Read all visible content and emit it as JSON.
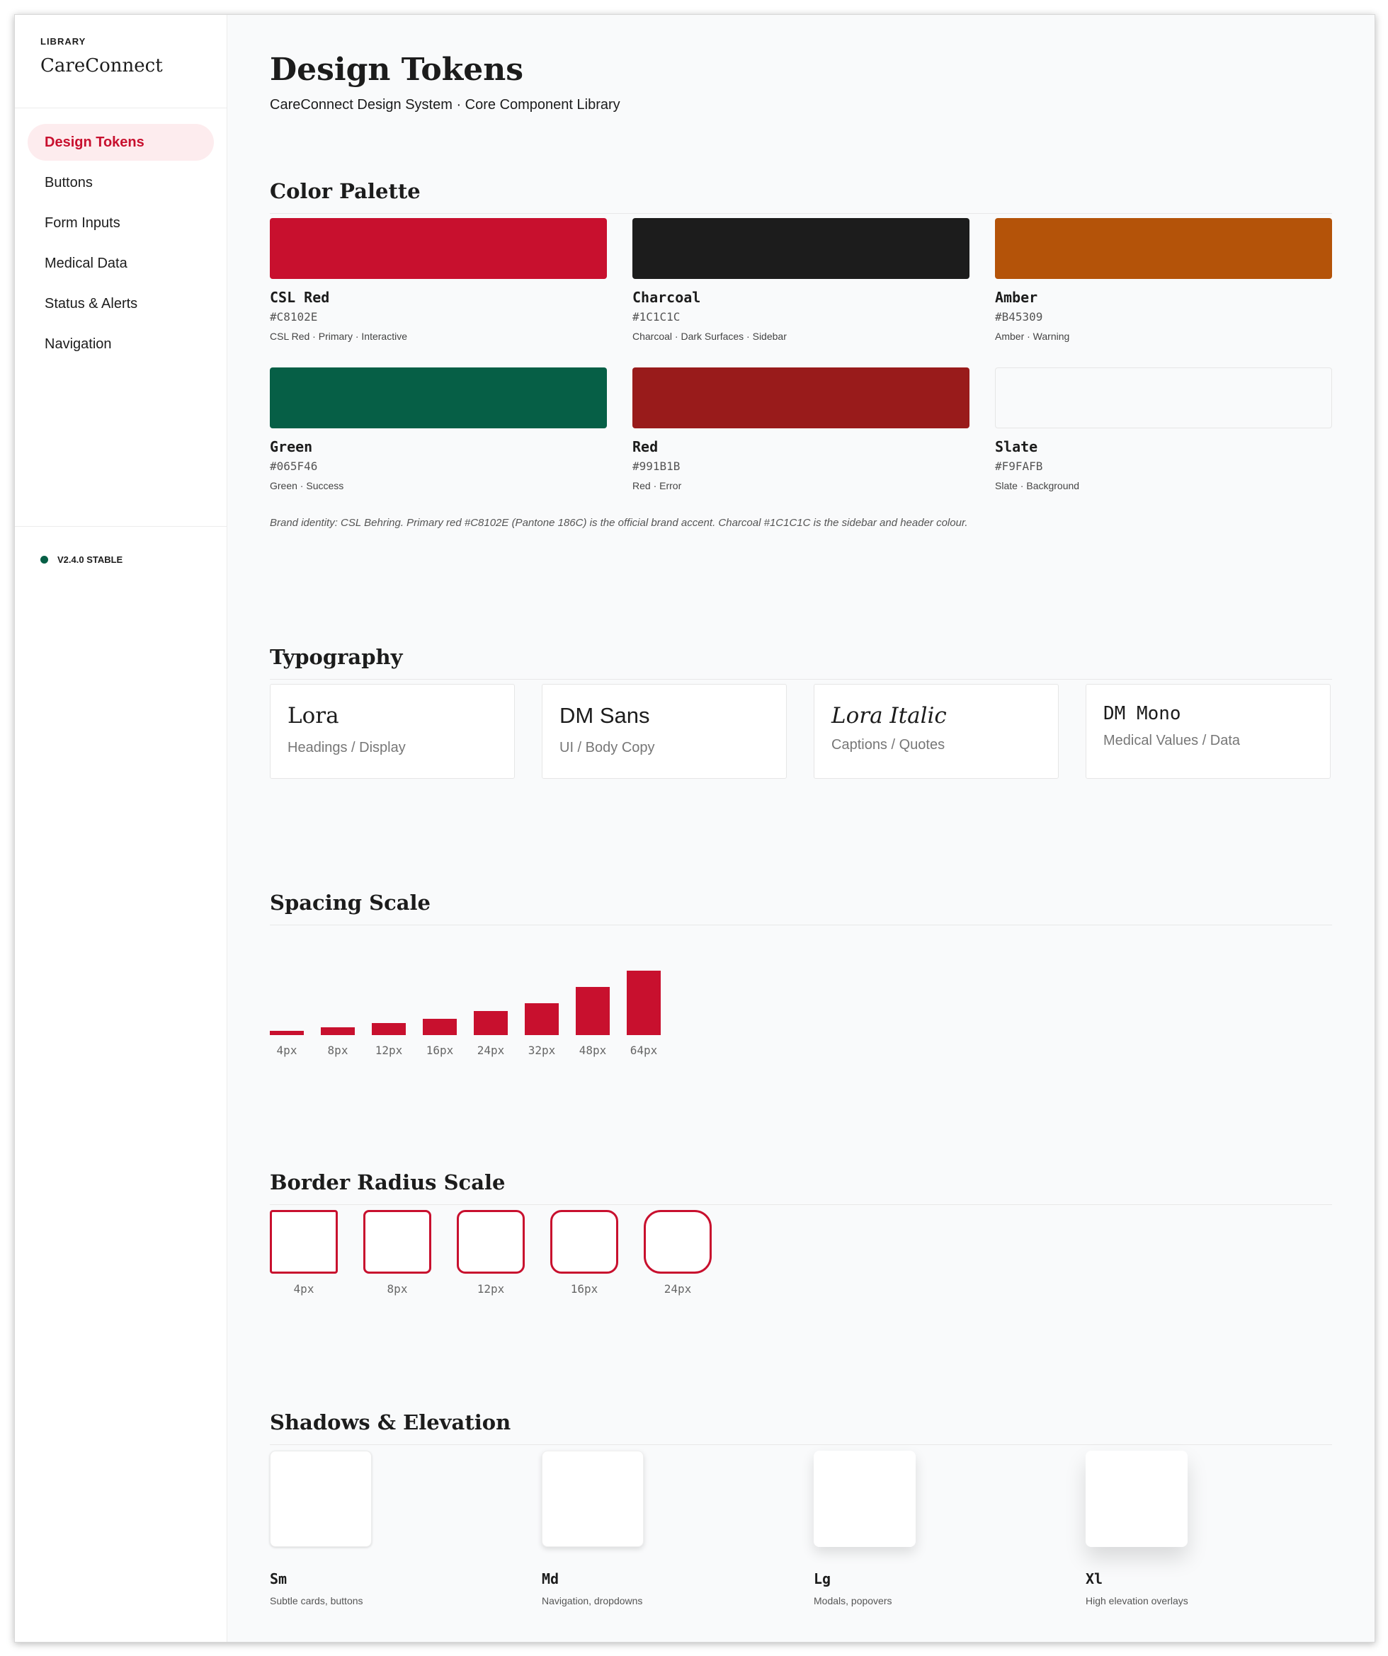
{
  "sidebar": {
    "kicker": "LIBRARY",
    "title": "CareConnect",
    "items": [
      {
        "label": "Design Tokens",
        "active": true
      },
      {
        "label": "Buttons",
        "active": false
      },
      {
        "label": "Form Inputs",
        "active": false
      },
      {
        "label": "Medical Data",
        "active": false
      },
      {
        "label": "Status & Alerts",
        "active": false
      },
      {
        "label": "Navigation",
        "active": false
      }
    ],
    "version": "V2.4.0 STABLE",
    "version_color": "#065F46"
  },
  "header": {
    "title": "Design Tokens",
    "subtitle": "CareConnect Design System · Core Component Library"
  },
  "sections": {
    "colors": "Color Palette",
    "typography": "Typography",
    "spacing": "Spacing Scale",
    "radius": "Border Radius Scale",
    "shadows": "Shadows & Elevation"
  },
  "colors": [
    {
      "name": "CSL Red",
      "hex": "#C8102E",
      "note": "CSL Red · Primary · Interactive"
    },
    {
      "name": "Charcoal",
      "hex": "#1C1C1C",
      "note": "Charcoal · Dark Surfaces · Sidebar"
    },
    {
      "name": "Amber",
      "hex": "#B45309",
      "note": "Amber · Warning"
    },
    {
      "name": "Green",
      "hex": "#065F46",
      "note": "Green · Success"
    },
    {
      "name": "Red",
      "hex": "#991B1B",
      "note": "Red · Error"
    },
    {
      "name": "Slate",
      "hex": "#F9FAFB",
      "note": "Slate · Background"
    }
  ],
  "brand_note": "Brand identity: CSL Behring. Primary red #C8102E (Pantone 186C) is the official brand accent. Charcoal #1C1C1C is the sidebar and header colour.",
  "typography": [
    {
      "name": "Lora",
      "use": "Headings / Display"
    },
    {
      "name": "DM Sans",
      "use": "UI / Body Copy"
    },
    {
      "name": "Lora Italic",
      "use": "Captions / Quotes"
    },
    {
      "name": "DM Mono",
      "use": "Medical Values / Data"
    }
  ],
  "spacing": [
    "4px",
    "8px",
    "12px",
    "16px",
    "24px",
    "32px",
    "48px",
    "64px"
  ],
  "spacing_values": [
    4,
    8,
    12,
    16,
    24,
    32,
    48,
    64
  ],
  "radius": [
    "4px",
    "8px",
    "12px",
    "16px",
    "24px"
  ],
  "shadows": [
    {
      "name": "Sm",
      "desc": "Subtle cards, buttons"
    },
    {
      "name": "Md",
      "desc": "Navigation, dropdowns"
    },
    {
      "name": "Lg",
      "desc": "Modals, popovers"
    },
    {
      "name": "Xl",
      "desc": "High elevation overlays"
    }
  ]
}
